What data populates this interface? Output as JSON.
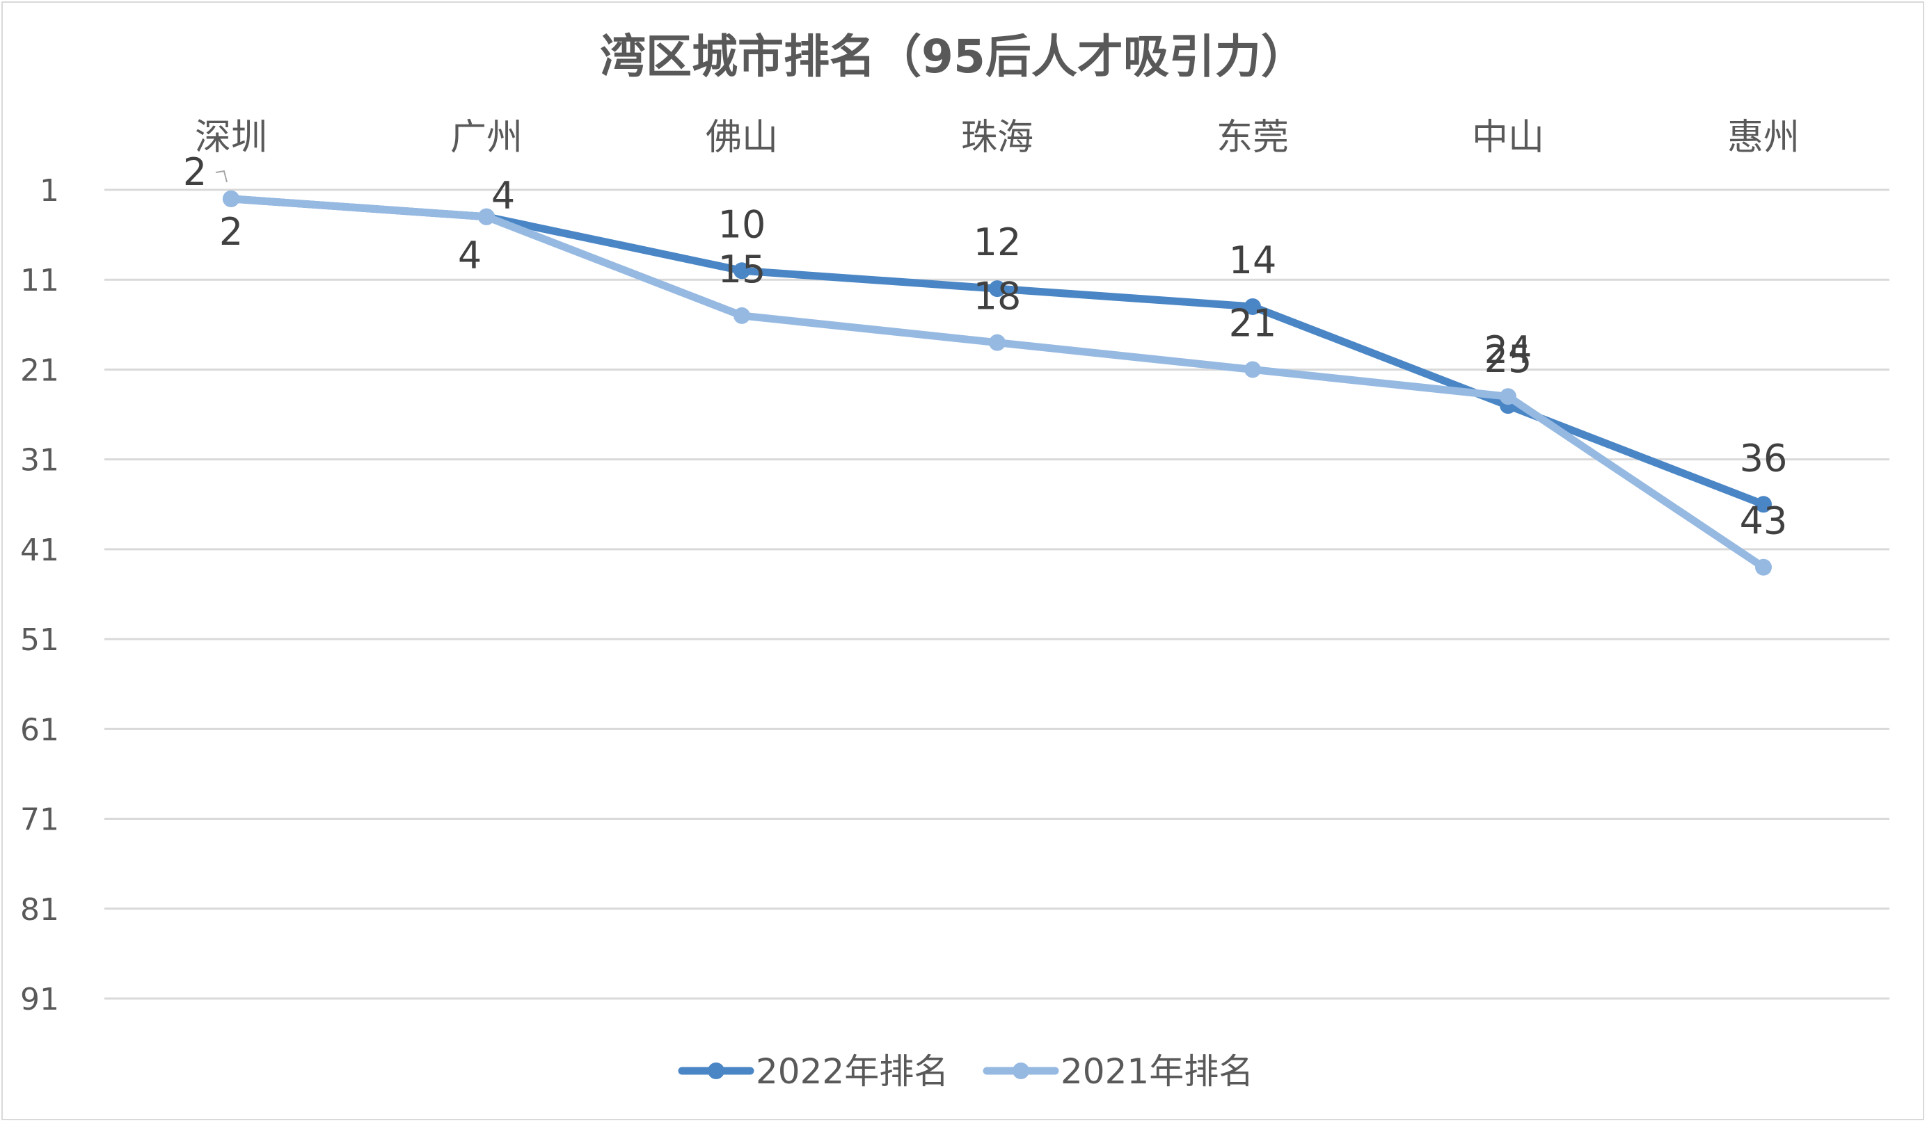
{
  "chart_data": {
    "type": "line",
    "title": "湾区城市排名（95后人才吸引力）",
    "categories": [
      "深圳",
      "广州",
      "佛山",
      "珠海",
      "东莞",
      "中山",
      "惠州"
    ],
    "yticks": [
      "1",
      "11",
      "21",
      "31",
      "41",
      "51",
      "61",
      "71",
      "81",
      "91"
    ],
    "ylim": [
      1,
      91
    ],
    "y_reversed": true,
    "series": [
      {
        "name": "2022年排名",
        "values": [
          2,
          4,
          10,
          12,
          14,
          25,
          36
        ],
        "color": "#4a86c5"
      },
      {
        "name": "2021年排名",
        "values": [
          2,
          4,
          15,
          18,
          21,
          24,
          43
        ],
        "color": "#96b9e2"
      }
    ],
    "legend": "bottom",
    "grid": true
  }
}
